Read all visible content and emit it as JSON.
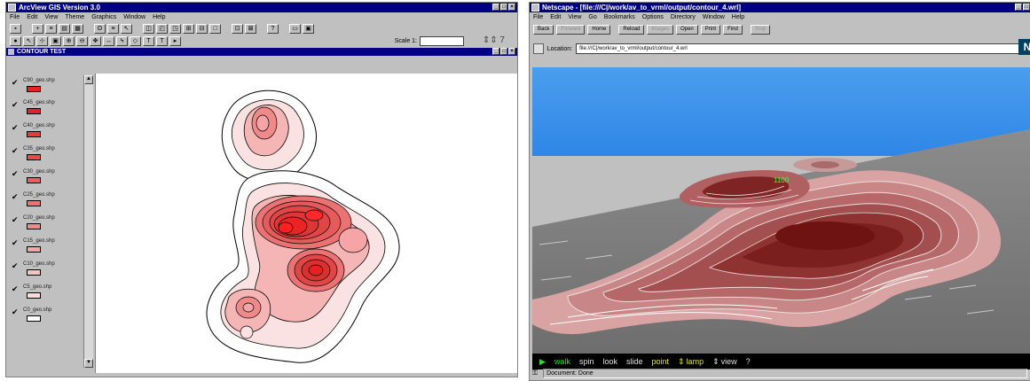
{
  "arcview": {
    "title": "ArcView GIS Version 3.0",
    "menu": [
      "File",
      "Edit",
      "View",
      "Theme",
      "Graphics",
      "Window",
      "Help"
    ],
    "scale_label": "Scale 1:",
    "view_title": "CONTOUR TEST",
    "themes": [
      {
        "name": "C90_geo.shp",
        "color": "#e8202a"
      },
      {
        "name": "C45_geo.shp",
        "color": "#e8202a"
      },
      {
        "name": "C40_geo.shp",
        "color": "#e83a3a"
      },
      {
        "name": "C35_geo.shp",
        "color": "#ec4848"
      },
      {
        "name": "C30_geo.shp",
        "color": "#ee5c5c"
      },
      {
        "name": "C25_geo.shp",
        "color": "#f07070"
      },
      {
        "name": "C20_geo.shp",
        "color": "#f28a8a"
      },
      {
        "name": "C15_geo.shp",
        "color": "#f5a5a5"
      },
      {
        "name": "C10_geo.shp",
        "color": "#f8c2c2"
      },
      {
        "name": "C5_geo.shp",
        "color": "#fbdcdc"
      },
      {
        "name": "C0_geo.shp",
        "color": "#ffffff"
      }
    ]
  },
  "netscape": {
    "title": "Netscape - [file:///C|/work/av_to_vrml/output/contour_4.wrl]",
    "menu": [
      "File",
      "Edit",
      "View",
      "Go",
      "Bookmarks",
      "Options",
      "Directory",
      "Window",
      "Help"
    ],
    "buttons": [
      {
        "label": "Back",
        "enabled": true
      },
      {
        "label": "Forward",
        "enabled": false
      },
      {
        "label": "Home",
        "enabled": true
      },
      {
        "label": "Reload",
        "enabled": true
      },
      {
        "label": "Images",
        "enabled": false
      },
      {
        "label": "Open",
        "enabled": true
      },
      {
        "label": "Print",
        "enabled": true
      },
      {
        "label": "Find",
        "enabled": true
      },
      {
        "label": "Stop",
        "enabled": false
      }
    ],
    "location_label": "Location:",
    "location_value": "file:///C|/work/av_to_vrml/output/contour_4.wrl",
    "logo": "N",
    "vrml_controls": [
      {
        "label": "walk",
        "color": "#30e030"
      },
      {
        "label": "spin",
        "color": "#e0e0e0"
      },
      {
        "label": "look",
        "color": "#e0e0e0"
      },
      {
        "label": "slide",
        "color": "#e0e0e0"
      },
      {
        "label": "point",
        "color": "#e0e040"
      },
      {
        "label": "lamp",
        "color": "#e0e040"
      },
      {
        "label": "view",
        "color": "#e0e0e0"
      },
      {
        "label": "?",
        "color": "#e0e0e0"
      }
    ],
    "scene_label": "1100",
    "status": "Document: Done"
  }
}
